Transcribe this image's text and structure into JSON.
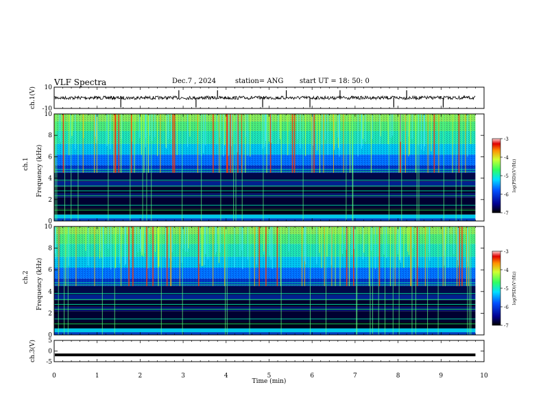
{
  "header": {
    "title": "VLF Spectra",
    "date": "Dec.7 , 2024",
    "station": "station= ANG",
    "start": "start UT = 18: 50: 0"
  },
  "chart_data": [
    {
      "type": "line",
      "name": "ch1-waveform",
      "ylabel": "ch.1(V)",
      "ylim": [
        -10,
        10
      ],
      "yticks": [
        "10",
        "-10"
      ],
      "baseline": 0,
      "x_spikes_min": [
        1.55,
        2.9,
        3.3,
        3.8,
        4.85,
        5.4,
        5.95,
        6.65,
        7.9,
        8.2,
        9.05
      ]
    },
    {
      "type": "heatmap",
      "name": "ch1-spectrogram",
      "ylabel": "ch.1\nFrequency (kHz)",
      "xlim": [
        0,
        10
      ],
      "ylim": [
        0,
        10
      ],
      "yticks": [
        "0",
        "2",
        "4",
        "6",
        "8",
        "10"
      ],
      "x_data_end_min": 9.8,
      "colorbar": {
        "label": "log(PSD)(V²/Hz)",
        "range": [
          -7,
          -3
        ],
        "ticks": [
          "-3",
          "-4",
          "-5",
          "-6",
          "-7"
        ]
      }
    },
    {
      "type": "heatmap",
      "name": "ch2-spectrogram",
      "ylabel": "ch.2\nFrequency (kHz)",
      "xlim": [
        0,
        10
      ],
      "ylim": [
        0,
        10
      ],
      "yticks": [
        "0",
        "2",
        "4",
        "6",
        "8",
        "10"
      ],
      "x_data_end_min": 9.8,
      "colorbar": {
        "label": "log(PSD)(V²/Hz)",
        "range": [
          -7,
          -3
        ],
        "ticks": [
          "-3",
          "-4",
          "-5",
          "-6",
          "-7"
        ]
      }
    },
    {
      "type": "line",
      "name": "ch3-waveform",
      "ylabel": "ch.3(V)",
      "ylim": [
        -5,
        5
      ],
      "yticks": [
        "5",
        "0",
        "-5"
      ],
      "y_value": -1.8,
      "xlabel": "Time (min)",
      "xlim": [
        0,
        10
      ],
      "xticks": [
        "0",
        "1",
        "2",
        "3",
        "4",
        "5",
        "6",
        "7",
        "8",
        "9",
        "10"
      ]
    }
  ]
}
